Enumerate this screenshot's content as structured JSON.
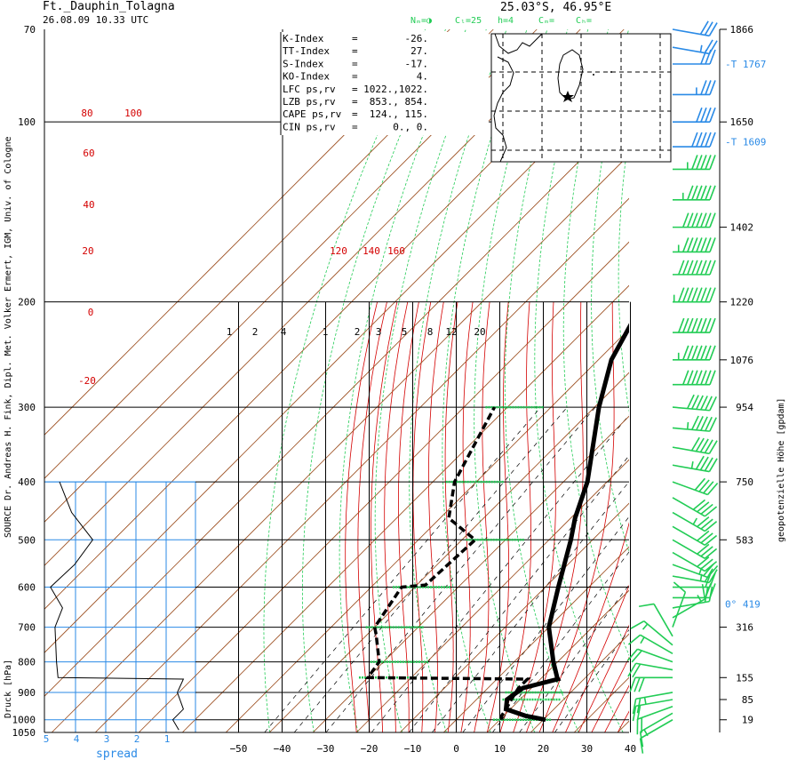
{
  "header": {
    "station": "Ft._Dauphin_Tolagna",
    "datetime": "26.08.09  10.33 UTC",
    "coords": "25.03°S,  46.95°E",
    "cloud_codes": [
      "Nₘ=◑",
      "Cₗ=25",
      "h=4",
      "Cₘ=",
      "Cₕ="
    ]
  },
  "indices": [
    {
      "label": "K-Index",
      "sep": "=",
      "value": "-26."
    },
    {
      "label": "TT-Index",
      "sep": "=",
      "value": "27."
    },
    {
      "label": "S-Index",
      "sep": "=",
      "value": "-17."
    },
    {
      "label": "KO-Index",
      "sep": "=",
      "value": "4."
    },
    {
      "label": "LFC  ps,rv",
      "sep": "=",
      "value": "1022.,1022."
    },
    {
      "label": "LZB  ps,rv",
      "sep": "=",
      "value": "853.,  854."
    },
    {
      "label": "CAPE ps,rv",
      "sep": "=",
      "value": "124.,  115."
    },
    {
      "label": "CIN  ps,rv",
      "sep": "=",
      "value": "0.,    0."
    }
  ],
  "left_axis_title": "Druck [hPa]",
  "right_axis_title": "geopotenzielle Höhe [gpdam]",
  "source_note": "SOURCE Dr. Andreas H. Fink, Dipl. Met. Volker Ermert, IGM, Univ. of Cologne",
  "spread_label": "spread",
  "chart_data": {
    "type": "line",
    "pressure_ticks": [
      70,
      100,
      200,
      300,
      400,
      500,
      600,
      700,
      800,
      900,
      1000,
      1050
    ],
    "temperature_ticks": [
      -50,
      -40,
      -30,
      -20,
      -10,
      0,
      10,
      20,
      30,
      40
    ],
    "height_labels": [
      {
        "p": 70,
        "text": "1866"
      },
      {
        "p": 100,
        "text": "1650"
      },
      {
        "p": 150,
        "text": "1402"
      },
      {
        "p": 200,
        "text": "1220"
      },
      {
        "p": 250,
        "text": "1076"
      },
      {
        "p": 300,
        "text": "954"
      },
      {
        "p": 400,
        "text": "750"
      },
      {
        "p": 500,
        "text": "583"
      },
      {
        "p": 700,
        "text": "316"
      },
      {
        "p": 850,
        "text": "155"
      },
      {
        "p": 925,
        "text": "85"
      },
      {
        "p": 1000,
        "text": "19"
      }
    ],
    "special_levels": [
      {
        "p": 80,
        "text": "-T   1767"
      },
      {
        "p": 108,
        "text": "-T   1609"
      },
      {
        "p": 640,
        "text": "0°   419"
      }
    ],
    "spread_ticks": [
      "5",
      "4",
      "3",
      "2",
      "1"
    ],
    "mixing_ratio_labels": [
      "1",
      "2",
      "4",
      "1",
      "2",
      "3",
      "5",
      "8",
      "12",
      "20"
    ],
    "dry_adiabat_labels": [
      "80",
      "100",
      "60",
      "40",
      "20",
      "0",
      "-20"
    ],
    "moist_adiabat_labels": [
      "120",
      "140",
      "160"
    ],
    "series": [
      {
        "name": "temperature",
        "points": [
          [
            1000,
            20.5
          ],
          [
            985,
            15
          ],
          [
            960,
            9
          ],
          [
            925,
            7
          ],
          [
            885,
            8
          ],
          [
            855,
            14
          ],
          [
            850,
            13.5
          ],
          [
            800,
            9
          ],
          [
            700,
            0
          ],
          [
            600,
            -7
          ],
          [
            500,
            -15
          ],
          [
            460,
            -19
          ],
          [
            400,
            -24.5
          ],
          [
            300,
            -39
          ],
          [
            250,
            -47
          ],
          [
            200,
            -53
          ],
          [
            165,
            -57
          ],
          [
            150,
            -56
          ],
          [
            120,
            -57
          ],
          [
            110,
            -59
          ],
          [
            100,
            -58
          ],
          [
            85,
            -62
          ],
          [
            80,
            -63
          ],
          [
            75,
            -60
          ],
          [
            70,
            -59
          ]
        ]
      },
      {
        "name": "dewpoint",
        "points": [
          [
            1000,
            10.5
          ],
          [
            985,
            9.5
          ],
          [
            960,
            9
          ],
          [
            925,
            8
          ],
          [
            885,
            7
          ],
          [
            855,
            7
          ],
          [
            850,
            -30
          ],
          [
            800,
            -31
          ],
          [
            720,
            -38
          ],
          [
            700,
            -40
          ],
          [
            600,
            -43
          ],
          [
            595,
            -38
          ],
          [
            500,
            -37
          ],
          [
            460,
            -48
          ],
          [
            400,
            -55
          ],
          [
            300,
            -63
          ]
        ]
      },
      {
        "name": "dewpoint spread",
        "points": [
          [
            1040,
            0.55
          ],
          [
            1000,
            0.75
          ],
          [
            960,
            0.4
          ],
          [
            900,
            0.6
          ],
          [
            855,
            0.4
          ],
          [
            850,
            4.55
          ],
          [
            800,
            4.6
          ],
          [
            700,
            4.65
          ],
          [
            650,
            4.4
          ],
          [
            600,
            4.8
          ],
          [
            550,
            4.0
          ],
          [
            500,
            3.4
          ],
          [
            450,
            4.1
          ],
          [
            400,
            4.5
          ]
        ]
      }
    ],
    "wind_barbs": [
      {
        "p": 1000,
        "dir": 60,
        "spd": 10
      },
      {
        "p": 975,
        "dir": 60,
        "spd": 15
      },
      {
        "p": 950,
        "dir": 70,
        "spd": 20
      },
      {
        "p": 925,
        "dir": 80,
        "spd": 20
      },
      {
        "p": 900,
        "dir": 80,
        "spd": 25
      },
      {
        "p": 850,
        "dir": 90,
        "spd": 30
      },
      {
        "p": 825,
        "dir": 100,
        "spd": 20
      },
      {
        "p": 800,
        "dir": 110,
        "spd": 20
      },
      {
        "p": 775,
        "dir": 120,
        "spd": 15
      },
      {
        "p": 750,
        "dir": 130,
        "spd": 15
      },
      {
        "p": 725,
        "dir": 150,
        "spd": 10
      },
      {
        "p": 700,
        "dir": 200,
        "spd": 10
      },
      {
        "p": 675,
        "dir": 240,
        "spd": 15
      },
      {
        "p": 650,
        "dir": 260,
        "spd": 20
      },
      {
        "p": 625,
        "dir": 270,
        "spd": 20
      },
      {
        "p": 600,
        "dir": 270,
        "spd": 20
      },
      {
        "p": 575,
        "dir": 280,
        "spd": 25
      },
      {
        "p": 550,
        "dir": 290,
        "spd": 25
      },
      {
        "p": 525,
        "dir": 300,
        "spd": 30
      },
      {
        "p": 500,
        "dir": 300,
        "spd": 30
      },
      {
        "p": 475,
        "dir": 300,
        "spd": 30
      },
      {
        "p": 450,
        "dir": 300,
        "spd": 35
      },
      {
        "p": 425,
        "dir": 300,
        "spd": 40
      },
      {
        "p": 400,
        "dir": 290,
        "spd": 40
      },
      {
        "p": 375,
        "dir": 280,
        "spd": 45
      },
      {
        "p": 350,
        "dir": 280,
        "spd": 50
      },
      {
        "p": 325,
        "dir": 275,
        "spd": 55
      },
      {
        "p": 300,
        "dir": 275,
        "spd": 60
      },
      {
        "p": 275,
        "dir": 270,
        "spd": 70
      },
      {
        "p": 250,
        "dir": 270,
        "spd": 75
      },
      {
        "p": 225,
        "dir": 270,
        "spd": 80
      },
      {
        "p": 200,
        "dir": 270,
        "spd": 85
      },
      {
        "p": 180,
        "dir": 270,
        "spd": 80
      },
      {
        "p": 165,
        "dir": 270,
        "spd": 75
      },
      {
        "p": 150,
        "dir": 270,
        "spd": 70
      },
      {
        "p": 135,
        "dir": 270,
        "spd": 65
      },
      {
        "p": 120,
        "dir": 270,
        "spd": 55
      },
      {
        "p": 110,
        "dir": 270,
        "spd": 50
      },
      {
        "p": 100,
        "dir": 270,
        "spd": 40
      },
      {
        "p": 90,
        "dir": 270,
        "spd": 35
      },
      {
        "p": 80,
        "dir": 270,
        "spd": 30
      },
      {
        "p": 75,
        "dir": 280,
        "spd": 25
      },
      {
        "p": 70,
        "dir": 280,
        "spd": 30
      }
    ]
  }
}
